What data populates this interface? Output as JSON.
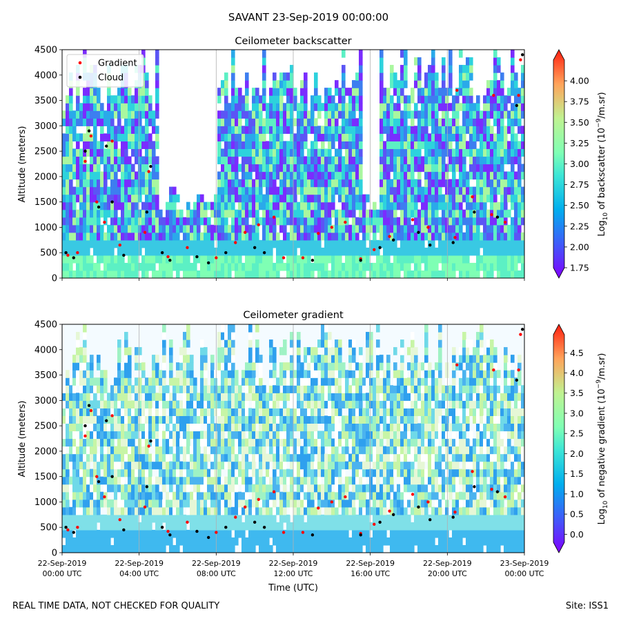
{
  "figure": {
    "suptitle": "SAVANT 23-Sep-2019 00:00:00",
    "footer_left": "REAL TIME DATA, NOT CHECKED FOR QUALITY",
    "footer_right": "Site: ISS1",
    "xlabel": "Time (UTC)"
  },
  "chart_data": [
    {
      "type": "heatmap",
      "title": "Ceilometer backscatter",
      "ylabel": "Altitude (meters)",
      "ylim": [
        0,
        4500
      ],
      "yticks": [
        0,
        500,
        1000,
        1500,
        2000,
        2500,
        3000,
        3500,
        4000,
        4500
      ],
      "xlim_hours": [
        0,
        24
      ],
      "colorbar": {
        "label_prefix": "Log",
        "label_sub": "10",
        "label_mid": " of backscatter (10",
        "label_sup": "−9",
        "label_suffix": "/m.sr)",
        "ticks": [
          "1.75",
          "2.00",
          "2.25",
          "2.50",
          "2.75",
          "3.00",
          "3.25",
          "3.50",
          "3.75",
          "4.00"
        ],
        "range": [
          1.75,
          4.25
        ]
      },
      "legend": {
        "position": "top-left",
        "entries": [
          {
            "name": "Gradient",
            "color": "#ff0000"
          },
          {
            "name": "Cloud",
            "color": "#000000"
          }
        ]
      },
      "series": [
        {
          "name": "Gradient",
          "color": "#ff0000",
          "points": [
            [
              0.3,
              450
            ],
            [
              0.8,
              500
            ],
            [
              1.2,
              2300
            ],
            [
              1.5,
              2800
            ],
            [
              1.8,
              1500
            ],
            [
              2.2,
              1100
            ],
            [
              2.6,
              2700
            ],
            [
              3.0,
              650
            ],
            [
              4.3,
              900
            ],
            [
              4.5,
              2100
            ],
            [
              5.5,
              420
            ],
            [
              6.5,
              600
            ],
            [
              8.0,
              400
            ],
            [
              9.0,
              700
            ],
            [
              9.5,
              900
            ],
            [
              10.2,
              1050
            ],
            [
              11.0,
              1200
            ],
            [
              11.5,
              400
            ],
            [
              12.5,
              400
            ],
            [
              13.3,
              880
            ],
            [
              14.0,
              1000
            ],
            [
              14.7,
              1100
            ],
            [
              15.5,
              380
            ],
            [
              16.2,
              560
            ],
            [
              17.0,
              820
            ],
            [
              18.2,
              1150
            ],
            [
              19.0,
              1000
            ],
            [
              20.4,
              800
            ],
            [
              21.3,
              1600
            ],
            [
              22.3,
              1250
            ],
            [
              23.0,
              1100
            ],
            [
              20.5,
              3700
            ],
            [
              22.4,
              3600
            ],
            [
              23.7,
              3600
            ],
            [
              23.8,
              4300
            ]
          ]
        },
        {
          "name": "Cloud",
          "color": "#000000",
          "points": [
            [
              0.2,
              500
            ],
            [
              0.6,
              400
            ],
            [
              1.2,
              2500
            ],
            [
              1.4,
              2900
            ],
            [
              1.9,
              1400
            ],
            [
              2.3,
              2600
            ],
            [
              2.6,
              1500
            ],
            [
              3.2,
              450
            ],
            [
              4.4,
              1300
            ],
            [
              4.6,
              2200
            ],
            [
              5.2,
              500
            ],
            [
              5.6,
              350
            ],
            [
              7.0,
              420
            ],
            [
              7.6,
              300
            ],
            [
              8.5,
              500
            ],
            [
              10.0,
              600
            ],
            [
              10.5,
              500
            ],
            [
              13.0,
              350
            ],
            [
              15.5,
              350
            ],
            [
              16.5,
              600
            ],
            [
              17.2,
              750
            ],
            [
              18.5,
              900
            ],
            [
              19.1,
              650
            ],
            [
              20.3,
              700
            ],
            [
              21.4,
              1300
            ],
            [
              22.6,
              1200
            ],
            [
              23.6,
              3400
            ],
            [
              23.9,
              4400
            ]
          ]
        }
      ]
    },
    {
      "type": "heatmap",
      "title": "Ceilometer gradient",
      "ylabel": "Altitude (meters)",
      "ylim": [
        0,
        4500
      ],
      "yticks": [
        0,
        500,
        1000,
        1500,
        2000,
        2500,
        3000,
        3500,
        4000,
        4500
      ],
      "xlim_hours": [
        0,
        24
      ],
      "colorbar": {
        "label_prefix": "Log",
        "label_sub": "10",
        "label_mid": " of negative gradient (10",
        "label_sup": "−9",
        "label_suffix": "/m.sr)",
        "ticks": [
          "0.0",
          "0.5",
          "1.0",
          "1.5",
          "2.0",
          "2.5",
          "3.0",
          "3.5",
          "4.0",
          "4.5"
        ],
        "range": [
          -0.2,
          4.95
        ]
      },
      "series": [
        {
          "name": "Gradient",
          "color": "#ff0000",
          "points": [
            [
              0.3,
              450
            ],
            [
              0.8,
              500
            ],
            [
              1.2,
              2300
            ],
            [
              1.5,
              2800
            ],
            [
              1.8,
              1500
            ],
            [
              2.2,
              1100
            ],
            [
              2.6,
              2700
            ],
            [
              3.0,
              650
            ],
            [
              4.3,
              900
            ],
            [
              4.5,
              2100
            ],
            [
              5.5,
              420
            ],
            [
              6.5,
              600
            ],
            [
              8.0,
              400
            ],
            [
              9.0,
              700
            ],
            [
              9.5,
              900
            ],
            [
              10.2,
              1050
            ],
            [
              11.0,
              1200
            ],
            [
              11.5,
              400
            ],
            [
              12.5,
              400
            ],
            [
              13.3,
              880
            ],
            [
              14.0,
              1000
            ],
            [
              14.7,
              1100
            ],
            [
              15.5,
              380
            ],
            [
              16.2,
              560
            ],
            [
              17.0,
              820
            ],
            [
              18.2,
              1150
            ],
            [
              19.0,
              1000
            ],
            [
              20.4,
              800
            ],
            [
              21.3,
              1600
            ],
            [
              22.3,
              1250
            ],
            [
              23.0,
              1100
            ],
            [
              20.5,
              3700
            ],
            [
              22.4,
              3600
            ],
            [
              23.7,
              3600
            ],
            [
              23.8,
              4300
            ]
          ]
        },
        {
          "name": "Cloud",
          "color": "#000000",
          "points": [
            [
              0.2,
              500
            ],
            [
              0.6,
              400
            ],
            [
              1.2,
              2500
            ],
            [
              1.4,
              2900
            ],
            [
              1.9,
              1400
            ],
            [
              2.3,
              2600
            ],
            [
              2.6,
              1500
            ],
            [
              3.2,
              450
            ],
            [
              4.4,
              1300
            ],
            [
              4.6,
              2200
            ],
            [
              5.2,
              500
            ],
            [
              5.6,
              350
            ],
            [
              7.0,
              420
            ],
            [
              7.6,
              300
            ],
            [
              8.5,
              500
            ],
            [
              10.0,
              600
            ],
            [
              10.5,
              500
            ],
            [
              13.0,
              350
            ],
            [
              15.5,
              350
            ],
            [
              16.5,
              600
            ],
            [
              17.2,
              750
            ],
            [
              18.5,
              900
            ],
            [
              19.1,
              650
            ],
            [
              20.3,
              700
            ],
            [
              21.4,
              1300
            ],
            [
              22.6,
              1200
            ],
            [
              23.6,
              3400
            ],
            [
              23.9,
              4400
            ]
          ]
        }
      ]
    }
  ],
  "xaxis": {
    "ticks": [
      {
        "hour": 0,
        "line1": "22-Sep-2019",
        "line2": "00:00 UTC"
      },
      {
        "hour": 4,
        "line1": "22-Sep-2019",
        "line2": "04:00 UTC"
      },
      {
        "hour": 8,
        "line1": "22-Sep-2019",
        "line2": "08:00 UTC"
      },
      {
        "hour": 12,
        "line1": "22-Sep-2019",
        "line2": "12:00 UTC"
      },
      {
        "hour": 16,
        "line1": "22-Sep-2019",
        "line2": "16:00 UTC"
      },
      {
        "hour": 20,
        "line1": "22-Sep-2019",
        "line2": "20:00 UTC"
      },
      {
        "hour": 24,
        "line1": "23-Sep-2019",
        "line2": "00:00 UTC"
      }
    ]
  }
}
